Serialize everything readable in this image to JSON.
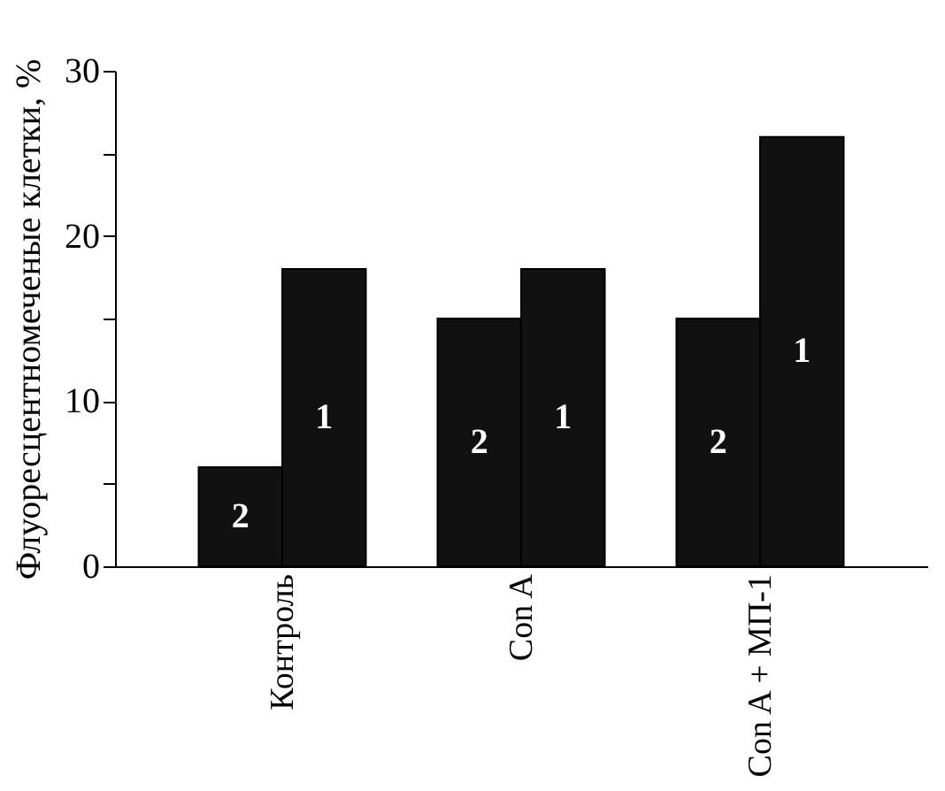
{
  "chart_data": {
    "type": "bar",
    "ylabel": "Флуоресцентномеченые клетки, %",
    "categories": [
      "Контроль",
      "Con A",
      "Con A + МП-1"
    ],
    "series": [
      {
        "name": "2",
        "color": "#111111",
        "values": [
          6,
          15,
          15
        ]
      },
      {
        "name": "1",
        "color": "#111111",
        "values": [
          18,
          18,
          26
        ]
      }
    ],
    "ylim": [
      0,
      30
    ],
    "yticks": [
      0,
      {
        "value": 5,
        "label": null
      },
      10,
      {
        "value": 15,
        "label": null
      },
      20,
      {
        "value": 25,
        "label": null
      },
      30
    ],
    "grid": false,
    "legend": false
  }
}
